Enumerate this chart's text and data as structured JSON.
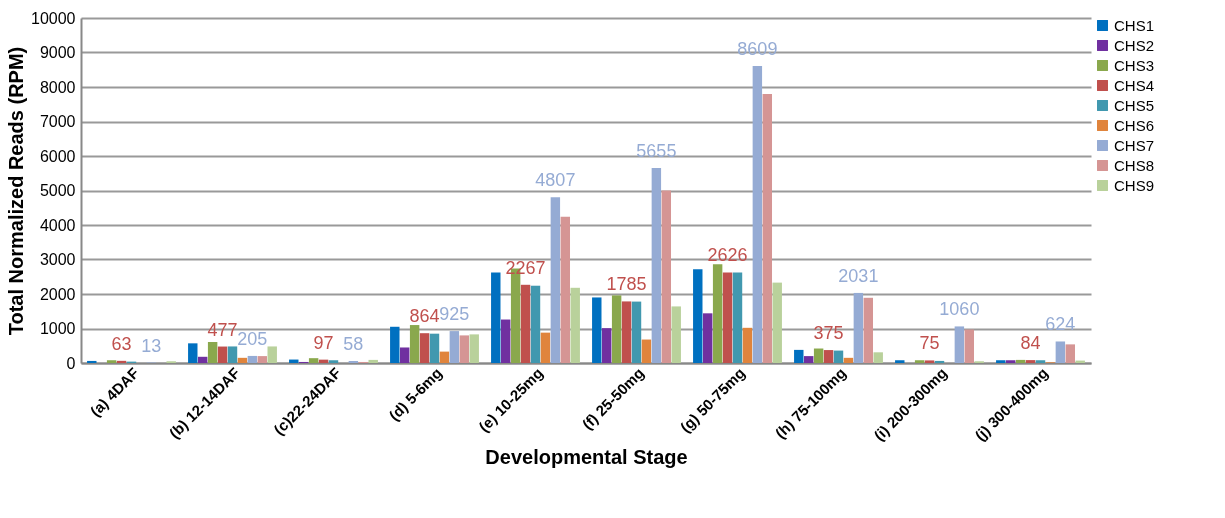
{
  "chart_data": {
    "type": "bar",
    "xlabel": "Developmental Stage",
    "ylabel": "Total Normalized Reads (RPM)",
    "categories": [
      "(a) 4DAF",
      "(b) 12-14DAF",
      "(c)22-24DAF",
      "(d) 5-6mg",
      "(e) 10-25mg",
      "(f) 25-50mg",
      "(g) 50-75mg",
      "(h) 75-100mg",
      "(i) 200-300mg",
      "(j) 300-400mg"
    ],
    "series": [
      {
        "name": "CHS1",
        "color": "#0070c0",
        "values": [
          60,
          570,
          100,
          1050,
          2620,
          1900,
          2720,
          380,
          80,
          80
        ]
      },
      {
        "name": "CHS2",
        "color": "#7030a0",
        "values": [
          null,
          180,
          30,
          450,
          1260,
          1010,
          1440,
          200,
          null,
          80
        ]
      },
      {
        "name": "CHS3",
        "color": "#8aa84d",
        "values": [
          80,
          610,
          140,
          1100,
          2740,
          1960,
          2860,
          420,
          80,
          90
        ]
      },
      {
        "name": "CHS4",
        "color": "#c0504d",
        "values": [
          63,
          477,
          97,
          864,
          2267,
          1785,
          2626,
          375,
          75,
          84
        ],
        "value_labels": [
          "63",
          "477",
          "97",
          "864",
          "2267",
          "1785",
          "2626",
          "375",
          "75",
          "84"
        ]
      },
      {
        "name": "CHS5",
        "color": "#4198af",
        "values": [
          40,
          480,
          80,
          850,
          2240,
          1780,
          2620,
          360,
          60,
          80
        ]
      },
      {
        "name": "CHS6",
        "color": "#e0843c",
        "values": [
          0,
          150,
          0,
          330,
          880,
          680,
          1020,
          150,
          0,
          20
        ]
      },
      {
        "name": "CHS7",
        "color": "#95abd4",
        "values": [
          13,
          205,
          58,
          925,
          4807,
          5655,
          8609,
          2031,
          1060,
          624
        ],
        "value_labels": [
          "13",
          "205",
          "58",
          "925",
          "4807",
          "5655",
          "8609",
          "2031",
          "1060",
          "624"
        ]
      },
      {
        "name": "CHS8",
        "color": "#d59594",
        "values": [
          0,
          200,
          30,
          800,
          4240,
          5000,
          7800,
          1890,
          970,
          540
        ]
      },
      {
        "name": "CHS9",
        "color": "#b9d19b",
        "values": [
          50,
          480,
          90,
          830,
          2180,
          1640,
          2330,
          310,
          50,
          70
        ]
      }
    ],
    "ylim": [
      0,
      10000
    ],
    "yticks": [
      0,
      1000,
      2000,
      3000,
      4000,
      5000,
      6000,
      7000,
      8000,
      9000,
      10000
    ],
    "grid": "y",
    "legend": "right"
  }
}
